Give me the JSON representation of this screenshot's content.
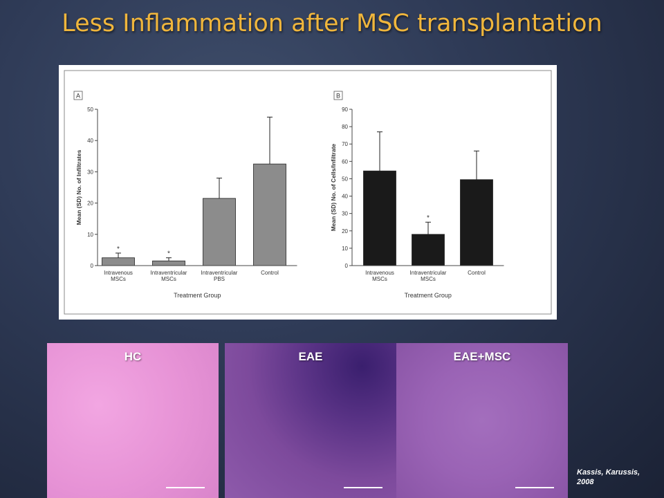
{
  "slide": {
    "title": "Less Inflammation after MSC transplantation",
    "citation_line1": "Kassis, Karussis,",
    "citation_line2": "2008"
  },
  "chart_data": [
    {
      "panel": "A",
      "type": "bar",
      "categories": [
        [
          "Intravenous",
          "MSCs"
        ],
        [
          "Intraventricular",
          "MSCs"
        ],
        [
          "Intraventricular",
          "PBS"
        ],
        [
          "Control"
        ]
      ],
      "values": [
        2.5,
        1.5,
        21.5,
        32.5
      ],
      "errors": [
        1.5,
        1.0,
        6.5,
        15
      ],
      "significant": [
        true,
        true,
        false,
        false
      ],
      "significance_marker": "*",
      "bar_color": "#8c8c8c",
      "xlabel": "Treatment Group",
      "ylabel": "Mean (SD) No. of Infiltrates",
      "ylim": [
        0,
        50
      ],
      "yticks": [
        0,
        10,
        20,
        30,
        40,
        50
      ]
    },
    {
      "panel": "B",
      "type": "bar",
      "categories": [
        [
          "Intravenous",
          "MSCs"
        ],
        [
          "Intraventricular",
          "MSCs"
        ],
        [
          "Control"
        ]
      ],
      "values": [
        54.5,
        18,
        49.5
      ],
      "errors": [
        22.5,
        7,
        16.5
      ],
      "significant": [
        false,
        true,
        false
      ],
      "significance_marker": "*",
      "bar_color": "#1a1a1a",
      "xlabel": "Treatment Group",
      "ylabel": "Mean (SD) No. of Cells/Infiltrate",
      "ylim": [
        0,
        90
      ],
      "yticks": [
        0,
        10,
        20,
        30,
        40,
        50,
        60,
        70,
        80,
        90
      ]
    }
  ],
  "micrographs": [
    {
      "label": "HC",
      "tone": "#e793d6"
    },
    {
      "label": "EAE",
      "tone": "#7d4a9c"
    },
    {
      "label": "EAE+MSC",
      "tone": "#9a63b5"
    }
  ]
}
